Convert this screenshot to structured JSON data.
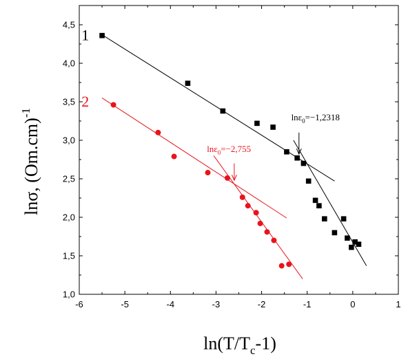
{
  "chart_data": {
    "type": "scatter",
    "xlabel": {
      "main": "ln(T/T",
      "sub": "c",
      "tail": "-1)"
    },
    "ylabel": {
      "main": "lnσ, (Om.cm)",
      "sup": "-1"
    },
    "xlim": [
      -6,
      1
    ],
    "ylim": [
      1.0,
      4.75
    ],
    "xticks": [
      -6,
      -5,
      -4,
      -3,
      -2,
      -1,
      0,
      1
    ],
    "xtick_labels": [
      "-6",
      "-5",
      "-4",
      "-3",
      "-2",
      "-1",
      "0",
      "1"
    ],
    "yticks": [
      1.0,
      1.5,
      2.0,
      2.5,
      3.0,
      3.5,
      4.0,
      4.5
    ],
    "ytick_labels": [
      "1,0",
      "1,5",
      "2,0",
      "2,5",
      "3,0",
      "3,5",
      "4,0",
      "4,5"
    ],
    "series": [
      {
        "name": "1",
        "color": "#000000",
        "marker": "square",
        "points": [
          [
            -5.5,
            4.36
          ],
          [
            -3.62,
            3.74
          ],
          [
            -2.85,
            3.38
          ],
          [
            -2.1,
            3.22
          ],
          [
            -1.75,
            3.17
          ],
          [
            -1.45,
            2.85
          ],
          [
            -1.22,
            2.77
          ],
          [
            -1.08,
            2.7
          ],
          [
            -0.97,
            2.47
          ],
          [
            -0.82,
            2.22
          ],
          [
            -0.74,
            2.15
          ],
          [
            -0.62,
            1.98
          ],
          [
            -0.4,
            1.8
          ],
          [
            -0.2,
            1.98
          ],
          [
            -0.12,
            1.73
          ],
          [
            -0.03,
            1.61
          ],
          [
            0.05,
            1.68
          ],
          [
            0.13,
            1.65
          ]
        ],
        "fits": [
          {
            "from": [
              -5.5,
              4.37
            ],
            "to": [
              -0.4,
              2.47
            ]
          },
          {
            "from": [
              -1.3,
              3.0
            ],
            "to": [
              0.3,
              1.37
            ]
          }
        ]
      },
      {
        "name": "2",
        "color": "#e8141b",
        "marker": "circle",
        "points": [
          [
            -5.25,
            3.46
          ],
          [
            -4.27,
            3.1
          ],
          [
            -3.92,
            2.79
          ],
          [
            -3.18,
            2.58
          ],
          [
            -2.75,
            2.51
          ],
          [
            -2.42,
            2.26
          ],
          [
            -2.3,
            2.15
          ],
          [
            -2.12,
            2.06
          ],
          [
            -2.03,
            1.92
          ],
          [
            -1.88,
            1.81
          ],
          [
            -1.73,
            1.7
          ],
          [
            -1.56,
            1.37
          ],
          [
            -1.4,
            1.39
          ]
        ],
        "fits": [
          {
            "from": [
              -5.5,
              3.55
            ],
            "to": [
              -1.45,
              1.99
            ]
          },
          {
            "from": [
              -3.05,
              2.8
            ],
            "to": [
              -1.1,
              1.2
            ]
          }
        ]
      }
    ],
    "annotations": [
      {
        "series": "1",
        "main": "lnε",
        "sub": "0",
        "tail": "=−1,2318",
        "label_at": [
          -1.35,
          3.26
        ],
        "arrow_from": [
          -1.18,
          3.1
        ],
        "arrow_to": [
          -1.18,
          2.82
        ]
      },
      {
        "series": "2",
        "main": "lnε",
        "sub": "0",
        "tail": "=−2,755",
        "label_at": [
          -3.2,
          2.85
        ],
        "arrow_from": [
          -2.6,
          2.7
        ],
        "arrow_to": [
          -2.6,
          2.48
        ]
      }
    ],
    "series_labels": [
      {
        "series": "1",
        "text": "1",
        "at": [
          -5.95,
          4.36
        ]
      },
      {
        "series": "2",
        "text": "2",
        "at": [
          -5.95,
          3.5
        ]
      }
    ],
    "grid": false,
    "legend": "none"
  }
}
